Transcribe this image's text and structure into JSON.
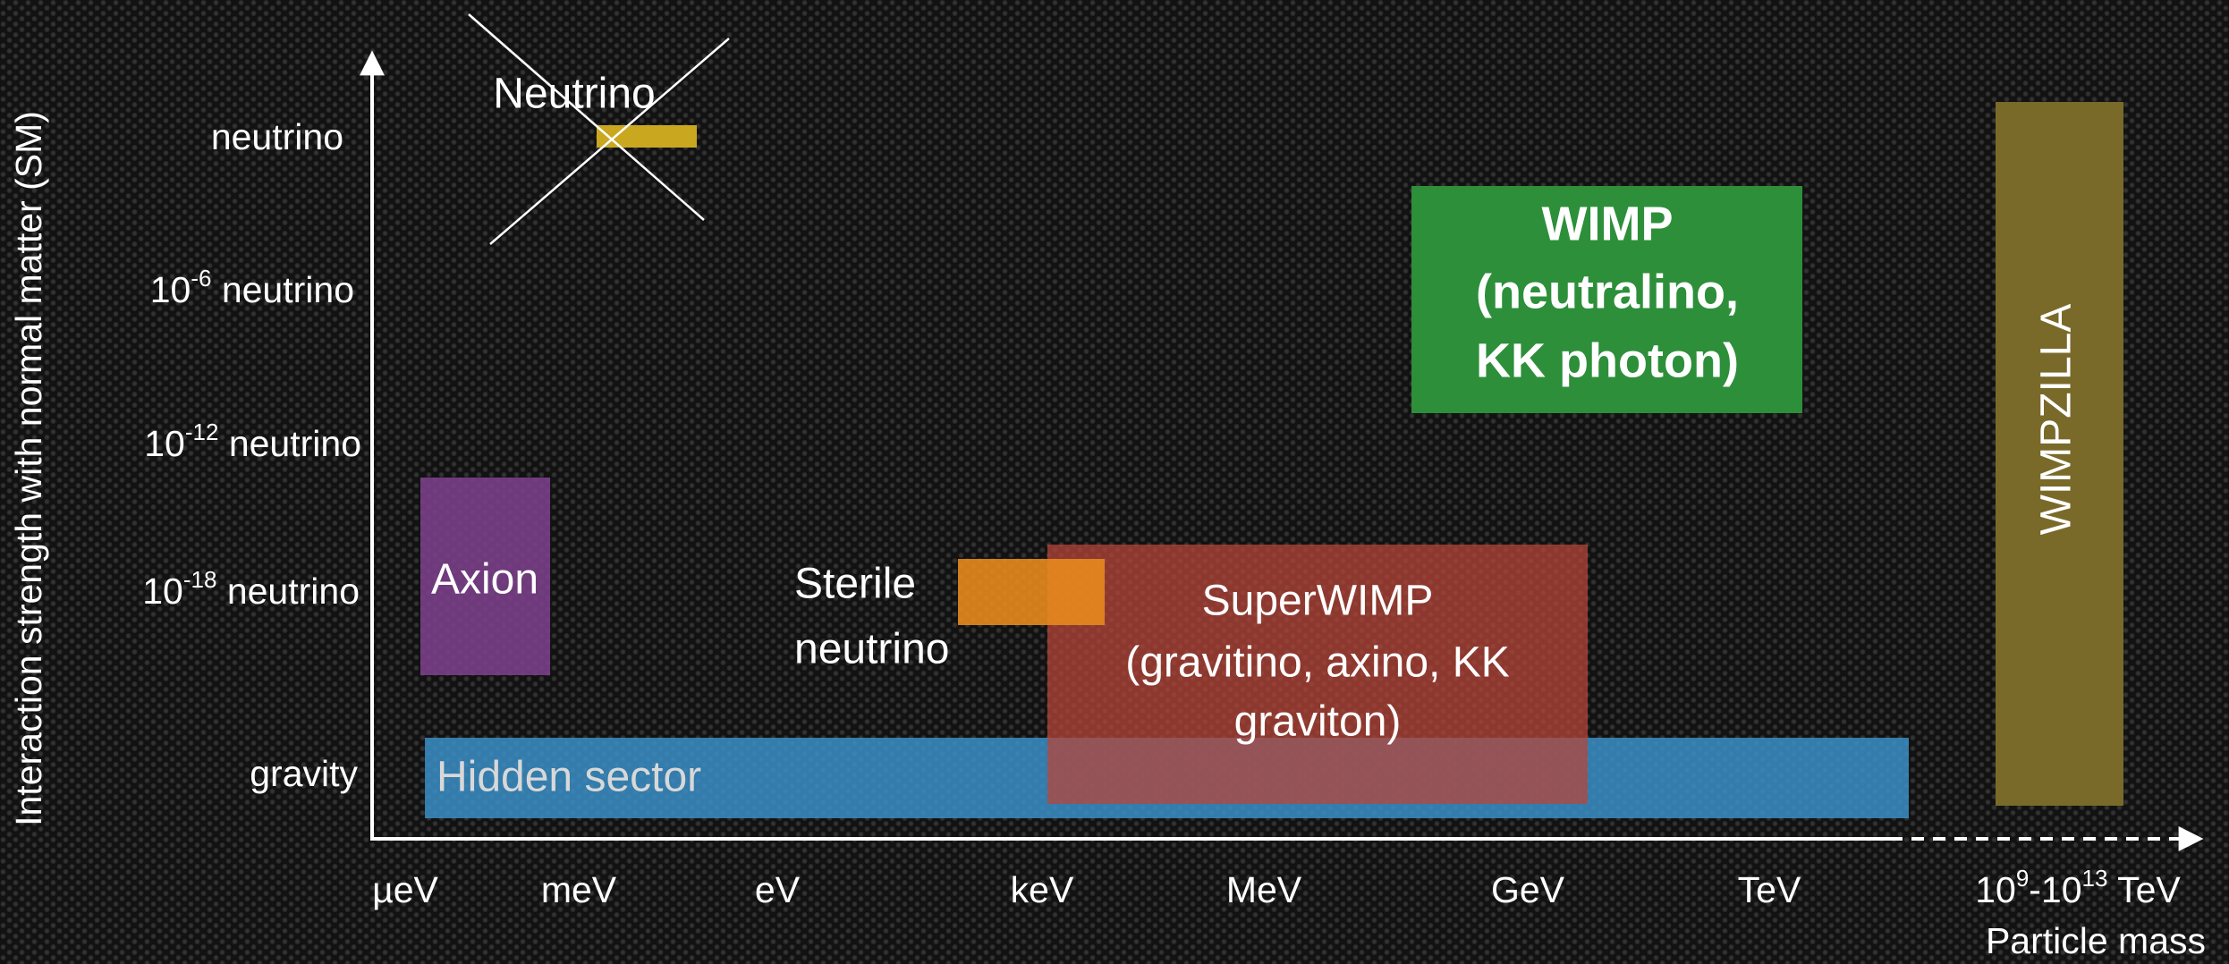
{
  "axes": {
    "y_title": "Interaction strength with normal matter (SM)",
    "x_title": "Particle mass"
  },
  "y_labels": [
    {
      "text": "neutrino"
    },
    {
      "base": "10",
      "sup": "-6",
      "rest": " neutrino"
    },
    {
      "base": "10",
      "sup": "-12",
      "rest": " neutrino"
    },
    {
      "base": "10",
      "sup": "-18",
      "rest": " neutrino"
    },
    {
      "text": "gravity"
    }
  ],
  "x_labels": [
    {
      "text": "µeV"
    },
    {
      "text": "meV"
    },
    {
      "text": "eV"
    },
    {
      "text": "keV"
    },
    {
      "text": "MeV"
    },
    {
      "text": "GeV"
    },
    {
      "text": "TeV"
    },
    {
      "base": "10",
      "sup": "9",
      "mid": "-10",
      "sup2": "13",
      "rest": " TeV"
    }
  ],
  "regions": {
    "neutrino": {
      "label": "Neutrino"
    },
    "axion": {
      "label": "Axion"
    },
    "sterile": {
      "lines": [
        "Sterile",
        "neutrino"
      ]
    },
    "superwimp": {
      "lines": [
        "SuperWIMP",
        "(gravitino, axino, KK",
        "graviton)"
      ]
    },
    "hidden": {
      "label": "Hidden sector"
    },
    "wimp": {
      "lines": [
        "WIMP",
        "(neutralino,",
        "KK photon)"
      ]
    },
    "wimpzilla": {
      "label": "WIMPZILLA"
    }
  }
}
